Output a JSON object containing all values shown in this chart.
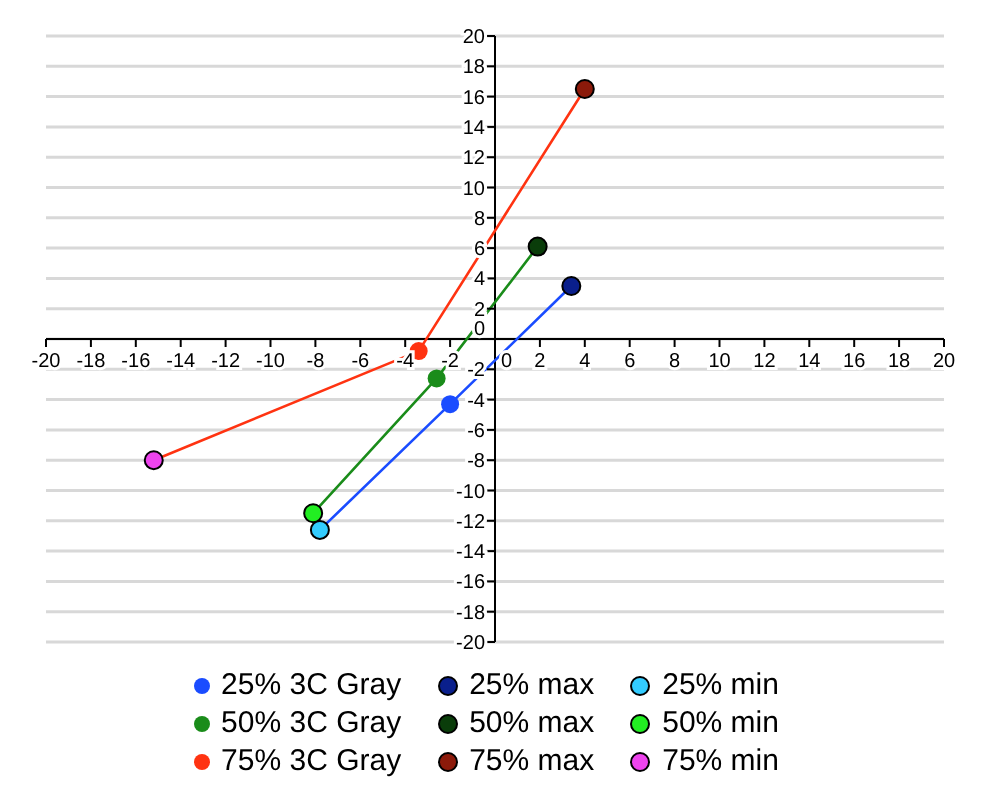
{
  "chart_data": {
    "type": "scatter",
    "xlim": [
      -20,
      20
    ],
    "ylim": [
      -20,
      20
    ],
    "xticks": [
      -20,
      -18,
      -16,
      -14,
      -12,
      -10,
      -8,
      -6,
      -4,
      -2,
      0,
      2,
      4,
      6,
      8,
      10,
      12,
      14,
      16,
      18,
      20
    ],
    "yticks": [
      -20,
      -18,
      -16,
      -14,
      -12,
      -10,
      -8,
      -6,
      -4,
      -2,
      0,
      2,
      4,
      6,
      8,
      10,
      12,
      14,
      16,
      18,
      20
    ],
    "grid": "y",
    "legend": "bottom",
    "marker": "circle",
    "line_style": "solid",
    "series": [
      {
        "name": "25% 3C Gray",
        "type": "line",
        "color": "#1a4cff",
        "x": [
          -7.8,
          -2.0,
          3.4
        ],
        "values": [
          -12.6,
          -4.3,
          3.5
        ]
      },
      {
        "name": "25% max",
        "color": "#0a1f8c",
        "x": [
          3.4
        ],
        "values": [
          3.5
        ]
      },
      {
        "name": "25% min",
        "color": "#33ccff",
        "x": [
          -7.8
        ],
        "values": [
          -12.6
        ]
      },
      {
        "name": "50% 3C Gray",
        "type": "line",
        "color": "#1a8c1a",
        "x": [
          -8.1,
          -2.6,
          1.9
        ],
        "values": [
          -11.5,
          -2.6,
          6.1
        ]
      },
      {
        "name": "50% max",
        "color": "#0a3d0a",
        "x": [
          1.9
        ],
        "values": [
          6.1
        ]
      },
      {
        "name": "50% min",
        "color": "#22ee22",
        "x": [
          -8.1
        ],
        "values": [
          -11.5
        ]
      },
      {
        "name": "75% 3C Gray",
        "type": "line",
        "color": "#ff3311",
        "x": [
          -15.2,
          -3.4,
          4.0
        ],
        "values": [
          -8.0,
          -0.8,
          16.5
        ]
      },
      {
        "name": "75% max",
        "color": "#8c1a0a",
        "x": [
          4.0
        ],
        "values": [
          16.5
        ]
      },
      {
        "name": "75% min",
        "color": "#ee44ee",
        "x": [
          -15.2
        ],
        "values": [
          -8.0
        ]
      }
    ]
  }
}
